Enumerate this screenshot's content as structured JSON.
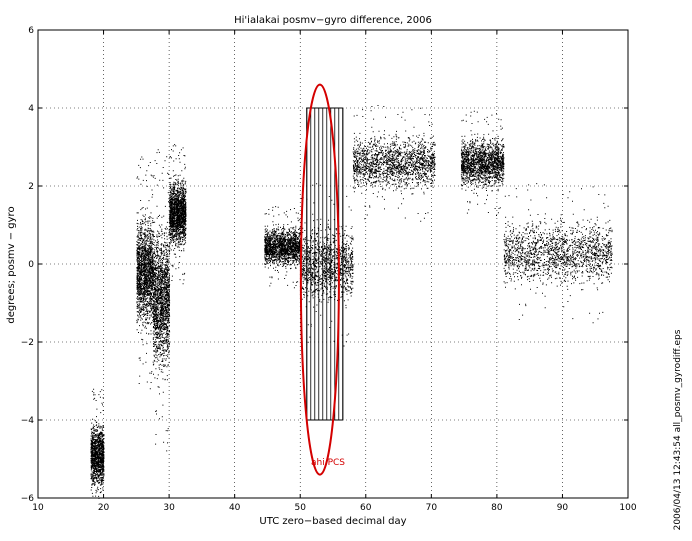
{
  "chart_data": {
    "type": "scatter",
    "title": "Hi'ialakai  posmv−gyro difference, 2006",
    "xlabel": "UTC zero−based decimal day",
    "ylabel": "degrees; posmv − gyro",
    "xlim": [
      10,
      100
    ],
    "ylim": [
      -6,
      6
    ],
    "x_ticks": [
      "10",
      "20",
      "30",
      "40",
      "50",
      "60",
      "70",
      "80",
      "90",
      "100"
    ],
    "y_ticks": [
      "6",
      "4",
      "2",
      "0",
      "−2",
      "−4",
      "−6"
    ],
    "grid": true,
    "series": [
      {
        "marker": "dot",
        "clusters": [
          {
            "x_range": [
              18.0,
              20.0
            ],
            "y_center": -4.9,
            "y_spread": 0.6,
            "density": "medium"
          },
          {
            "x_range": [
              25.0,
              27.5
            ],
            "y_center": -0.2,
            "y_spread": 1.0,
            "density": "high"
          },
          {
            "x_range": [
              27.5,
              30.0
            ],
            "y_center": -0.9,
            "y_spread": 1.3,
            "density": "high"
          },
          {
            "x_range": [
              30.0,
              32.5
            ],
            "y_center": 1.3,
            "y_spread": 0.6,
            "density": "high"
          },
          {
            "x_range": [
              44.5,
              50.0
            ],
            "y_center": 0.45,
            "y_spread": 0.35,
            "density": "high"
          },
          {
            "x_range": [
              50.0,
              58.0
            ],
            "y_center": 0.0,
            "y_spread": 0.7,
            "density": "medium"
          },
          {
            "x_range": [
              58.0,
              70.5
            ],
            "y_center": 2.6,
            "y_spread": 0.5,
            "density": "high"
          },
          {
            "x_range": [
              74.5,
              81.0
            ],
            "y_center": 2.6,
            "y_spread": 0.45,
            "density": "high"
          },
          {
            "x_range": [
              81.0,
              97.5
            ],
            "y_center": 0.3,
            "y_spread": 0.6,
            "density": "high"
          }
        ]
      }
    ],
    "hatched_region": {
      "x_range": [
        51,
        56.5
      ],
      "y_range": [
        -4,
        4
      ],
      "style": "vertical-lines"
    },
    "annotation": {
      "text": "ahi PCS",
      "color": "#d40000",
      "ellipse_center": [
        53.0,
        -0.4
      ],
      "ellipse_radii": [
        2.9,
        5.0
      ]
    },
    "colors": {
      "points": "#000000",
      "annotation": "#d40000",
      "grid": "#000000"
    }
  },
  "side_label": "2006/04/13 12:43:54   all_posmv_gyrodiff.eps"
}
